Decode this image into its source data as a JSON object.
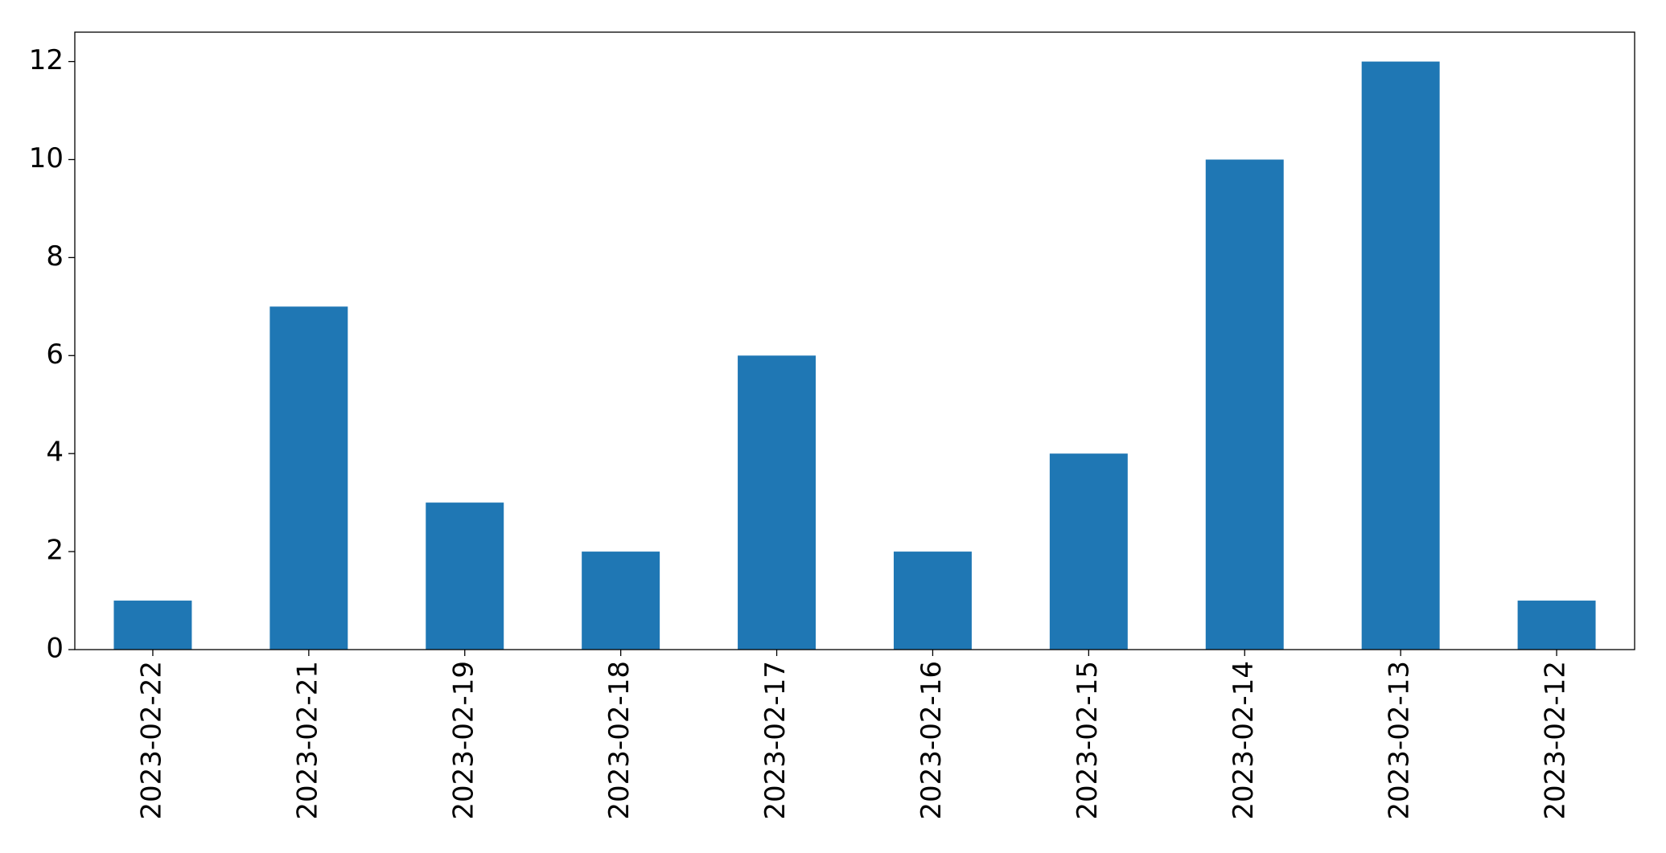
{
  "chart_data": {
    "type": "bar",
    "categories": [
      "2023-02-22",
      "2023-02-21",
      "2023-02-19",
      "2023-02-18",
      "2023-02-17",
      "2023-02-16",
      "2023-02-15",
      "2023-02-14",
      "2023-02-13",
      "2023-02-12"
    ],
    "values": [
      1,
      7,
      3,
      2,
      6,
      2,
      4,
      10,
      12,
      1
    ],
    "color": "#1f77b4",
    "ylim": [
      0,
      12.6
    ],
    "yticks": [
      0,
      2,
      4,
      6,
      8,
      10,
      12
    ],
    "grid": false
  }
}
